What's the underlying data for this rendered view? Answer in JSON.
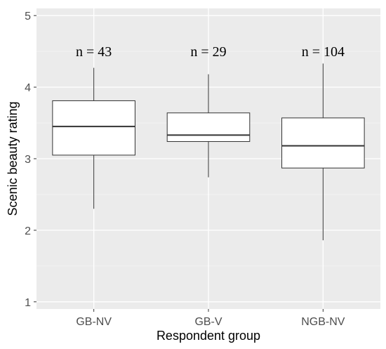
{
  "chart_data": {
    "type": "boxplot",
    "title": "",
    "xlabel": "Respondent group",
    "ylabel": "Scenic beauty rating",
    "ylim": [
      0.9,
      5.1
    ],
    "yticks": [
      "1",
      "2",
      "3",
      "4",
      "5"
    ],
    "grid": true,
    "categories": [
      "GB-NV",
      "GB-V",
      "NGB-NV"
    ],
    "boxes": [
      {
        "category": "GB-NV",
        "whisker_low": 2.3,
        "q1": 3.05,
        "median": 3.45,
        "q3": 3.81,
        "whisker_high": 4.27,
        "n_label": "n = 43"
      },
      {
        "category": "GB-V",
        "whisker_low": 2.74,
        "q1": 3.24,
        "median": 3.33,
        "q3": 3.64,
        "whisker_high": 4.18,
        "n_label": "n = 29"
      },
      {
        "category": "NGB-NV",
        "whisker_low": 1.86,
        "q1": 2.87,
        "median": 3.18,
        "q3": 3.57,
        "whisker_high": 4.33,
        "n_label": "n = 104"
      }
    ],
    "colors": {
      "panel": "#ebebeb",
      "grid_major": "#ffffff",
      "grid_minor": "#f4f4f4",
      "box_fill": "#ffffff",
      "box_line": "#333333"
    }
  }
}
